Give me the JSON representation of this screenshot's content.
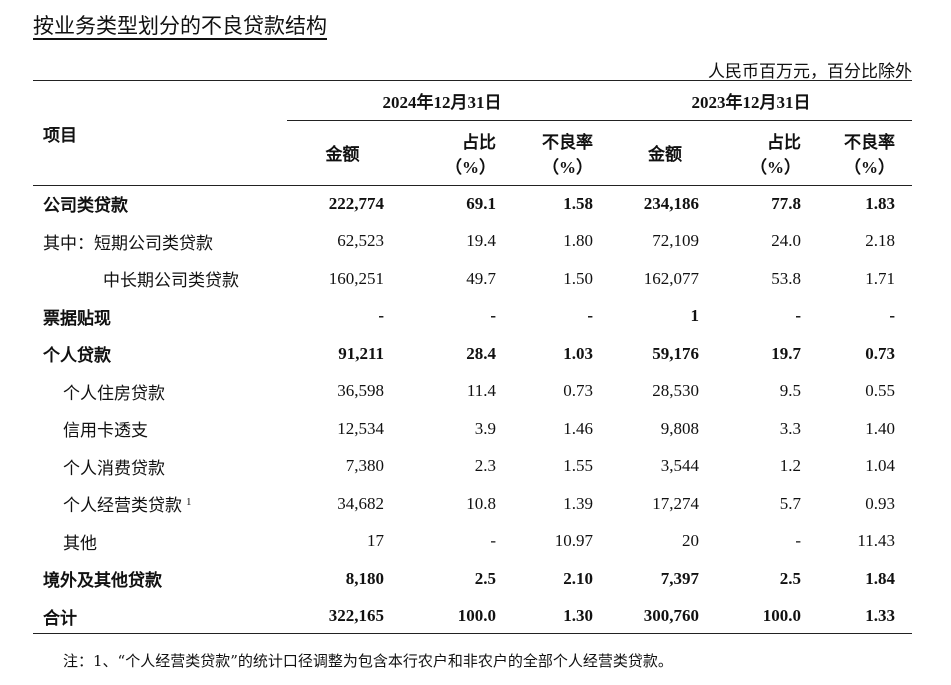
{
  "title": "按业务类型划分的不良贷款结构",
  "unit": "人民币百万元，百分比除外",
  "header": {
    "item": "项目",
    "period_2024": "2024年12月31日",
    "period_2023": "2023年12月31日",
    "amount": "金额",
    "share": "占比",
    "rate": "不良率",
    "pct": "（%）"
  },
  "rows": [
    {
      "label": "公司类贷款",
      "bold": true,
      "v": [
        "222,774",
        "69.1",
        "1.58",
        "234,186",
        "77.8",
        "1.83"
      ]
    },
    {
      "label": "其中：短期公司类贷款",
      "v": [
        "62,523",
        "19.4",
        "1.80",
        "72,109",
        "24.0",
        "2.18"
      ]
    },
    {
      "label": "中长期公司类贷款",
      "v": [
        "160,251",
        "49.7",
        "1.50",
        "162,077",
        "53.8",
        "1.71"
      ]
    },
    {
      "label": "票据贴现",
      "bold": true,
      "v": [
        "-",
        "-",
        "-",
        "1",
        "-",
        "-"
      ]
    },
    {
      "label": "个人贷款",
      "bold": true,
      "v": [
        "91,211",
        "28.4",
        "1.03",
        "59,176",
        "19.7",
        "0.73"
      ]
    },
    {
      "label": "个人住房贷款",
      "v": [
        "36,598",
        "11.4",
        "0.73",
        "28,530",
        "9.5",
        "0.55"
      ]
    },
    {
      "label": "信用卡透支",
      "v": [
        "12,534",
        "3.9",
        "1.46",
        "9,808",
        "3.3",
        "1.40"
      ]
    },
    {
      "label": "个人消费贷款",
      "v": [
        "7,380",
        "2.3",
        "1.55",
        "3,544",
        "1.2",
        "1.04"
      ]
    },
    {
      "label": "个人经营类贷款",
      "footnote": "1",
      "v": [
        "34,682",
        "10.8",
        "1.39",
        "17,274",
        "5.7",
        "0.93"
      ]
    },
    {
      "label": "其他",
      "v": [
        "17",
        "-",
        "10.97",
        "20",
        "-",
        "11.43"
      ]
    },
    {
      "label": "境外及其他贷款",
      "bold": true,
      "v": [
        "8,180",
        "2.5",
        "2.10",
        "7,397",
        "2.5",
        "1.84"
      ]
    },
    {
      "label": "合计",
      "bold": true,
      "v": [
        "322,165",
        "100.0",
        "1.30",
        "300,760",
        "100.0",
        "1.33"
      ]
    }
  ],
  "note": "注：1、“个人经营类贷款”的统计口径调整为包含本行农户和非农户的全部个人经营类贷款。"
}
